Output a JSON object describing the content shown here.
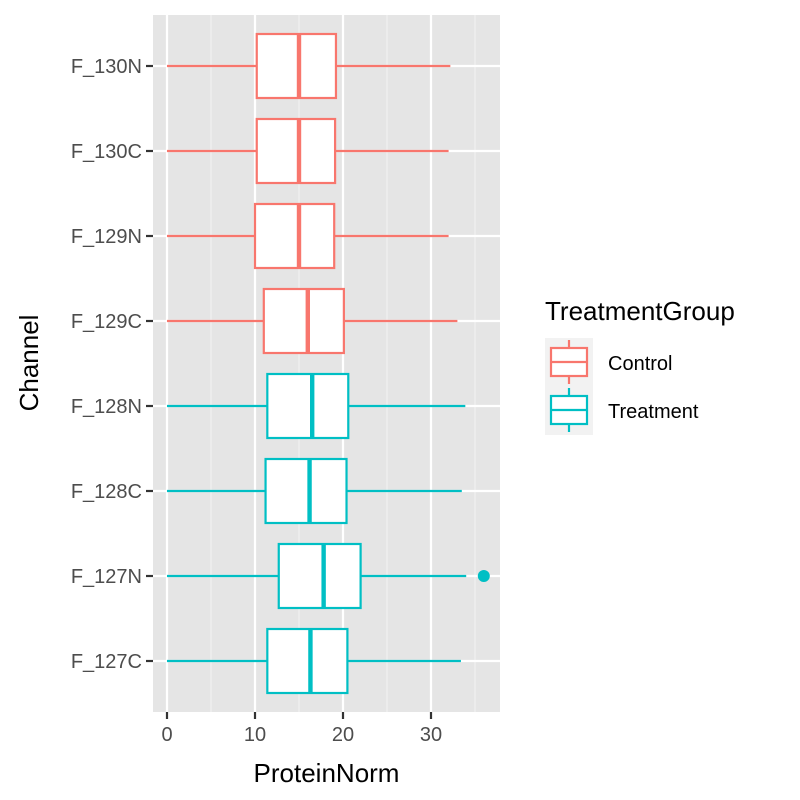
{
  "chart_data": {
    "type": "boxplot",
    "orientation": "horizontal",
    "xlabel": "ProteinNorm",
    "ylabel": "Channel",
    "xlim": [
      -1.8,
      37.8
    ],
    "xticks": [
      0,
      10,
      20,
      30
    ],
    "grid": true,
    "legend": {
      "title": "TreatmentGroup",
      "position": "right",
      "entries": [
        {
          "label": "Control",
          "color": "#F8766D"
        },
        {
          "label": "Treatment",
          "color": "#00BFC4"
        }
      ]
    },
    "categories": [
      "F_130N",
      "F_130C",
      "F_129N",
      "F_129C",
      "F_128N",
      "F_128C",
      "F_127N",
      "F_127C"
    ],
    "boxes": [
      {
        "channel": "F_130N",
        "group": "Control",
        "min": 0,
        "q1": 10.2,
        "median": 15.0,
        "q3": 19.2,
        "max": 32.2,
        "outliers": []
      },
      {
        "channel": "F_130C",
        "group": "Control",
        "min": 0,
        "q1": 10.2,
        "median": 15.0,
        "q3": 19.1,
        "max": 32.0,
        "outliers": []
      },
      {
        "channel": "F_129N",
        "group": "Control",
        "min": 0,
        "q1": 10.0,
        "median": 15.0,
        "q3": 19.0,
        "max": 32.0,
        "outliers": []
      },
      {
        "channel": "F_129C",
        "group": "Control",
        "min": 0,
        "q1": 11.0,
        "median": 16.0,
        "q3": 20.1,
        "max": 33.0,
        "outliers": []
      },
      {
        "channel": "F_128N",
        "group": "Treatment",
        "min": 0,
        "q1": 11.4,
        "median": 16.5,
        "q3": 20.6,
        "max": 33.9,
        "outliers": []
      },
      {
        "channel": "F_128C",
        "group": "Treatment",
        "min": 0,
        "q1": 11.2,
        "median": 16.2,
        "q3": 20.4,
        "max": 33.5,
        "outliers": []
      },
      {
        "channel": "F_127N",
        "group": "Treatment",
        "min": 0,
        "q1": 12.7,
        "median": 17.8,
        "q3": 22.0,
        "max": 34.0,
        "outliers": [
          36.0
        ]
      },
      {
        "channel": "F_127C",
        "group": "Treatment",
        "min": 0,
        "q1": 11.4,
        "median": 16.3,
        "q3": 20.5,
        "max": 33.4,
        "outliers": []
      }
    ]
  },
  "colors": {
    "panel_background": "#E5E5E5",
    "grid": "#FFFFFF",
    "axis_text": "#4D4D4D",
    "title_text": "#000000"
  }
}
